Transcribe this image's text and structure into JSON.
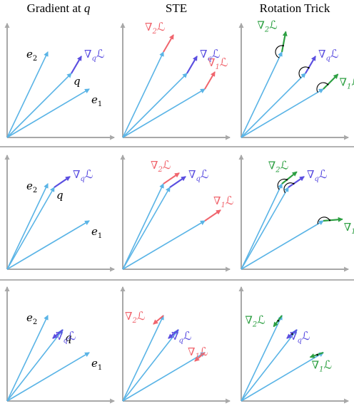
{
  "columns": [
    {
      "title": "Gradient at",
      "math": "q"
    },
    {
      "title": "STE",
      "math": ""
    },
    {
      "title": "Rotation Trick",
      "math": ""
    }
  ],
  "symbols": {
    "q": "q",
    "e1": "e",
    "e2": "e",
    "sub1": "1",
    "sub2": "2",
    "nabla": "∇",
    "loss": "ℒ"
  },
  "colors": {
    "axis": "#a8a8a8",
    "codebook": "#5ab4e6",
    "query": "#5b4fe0",
    "ste": "#f0656d",
    "rotation": "#2ea043",
    "divider": "#9a9a9a",
    "label_black": "#000000"
  }
}
